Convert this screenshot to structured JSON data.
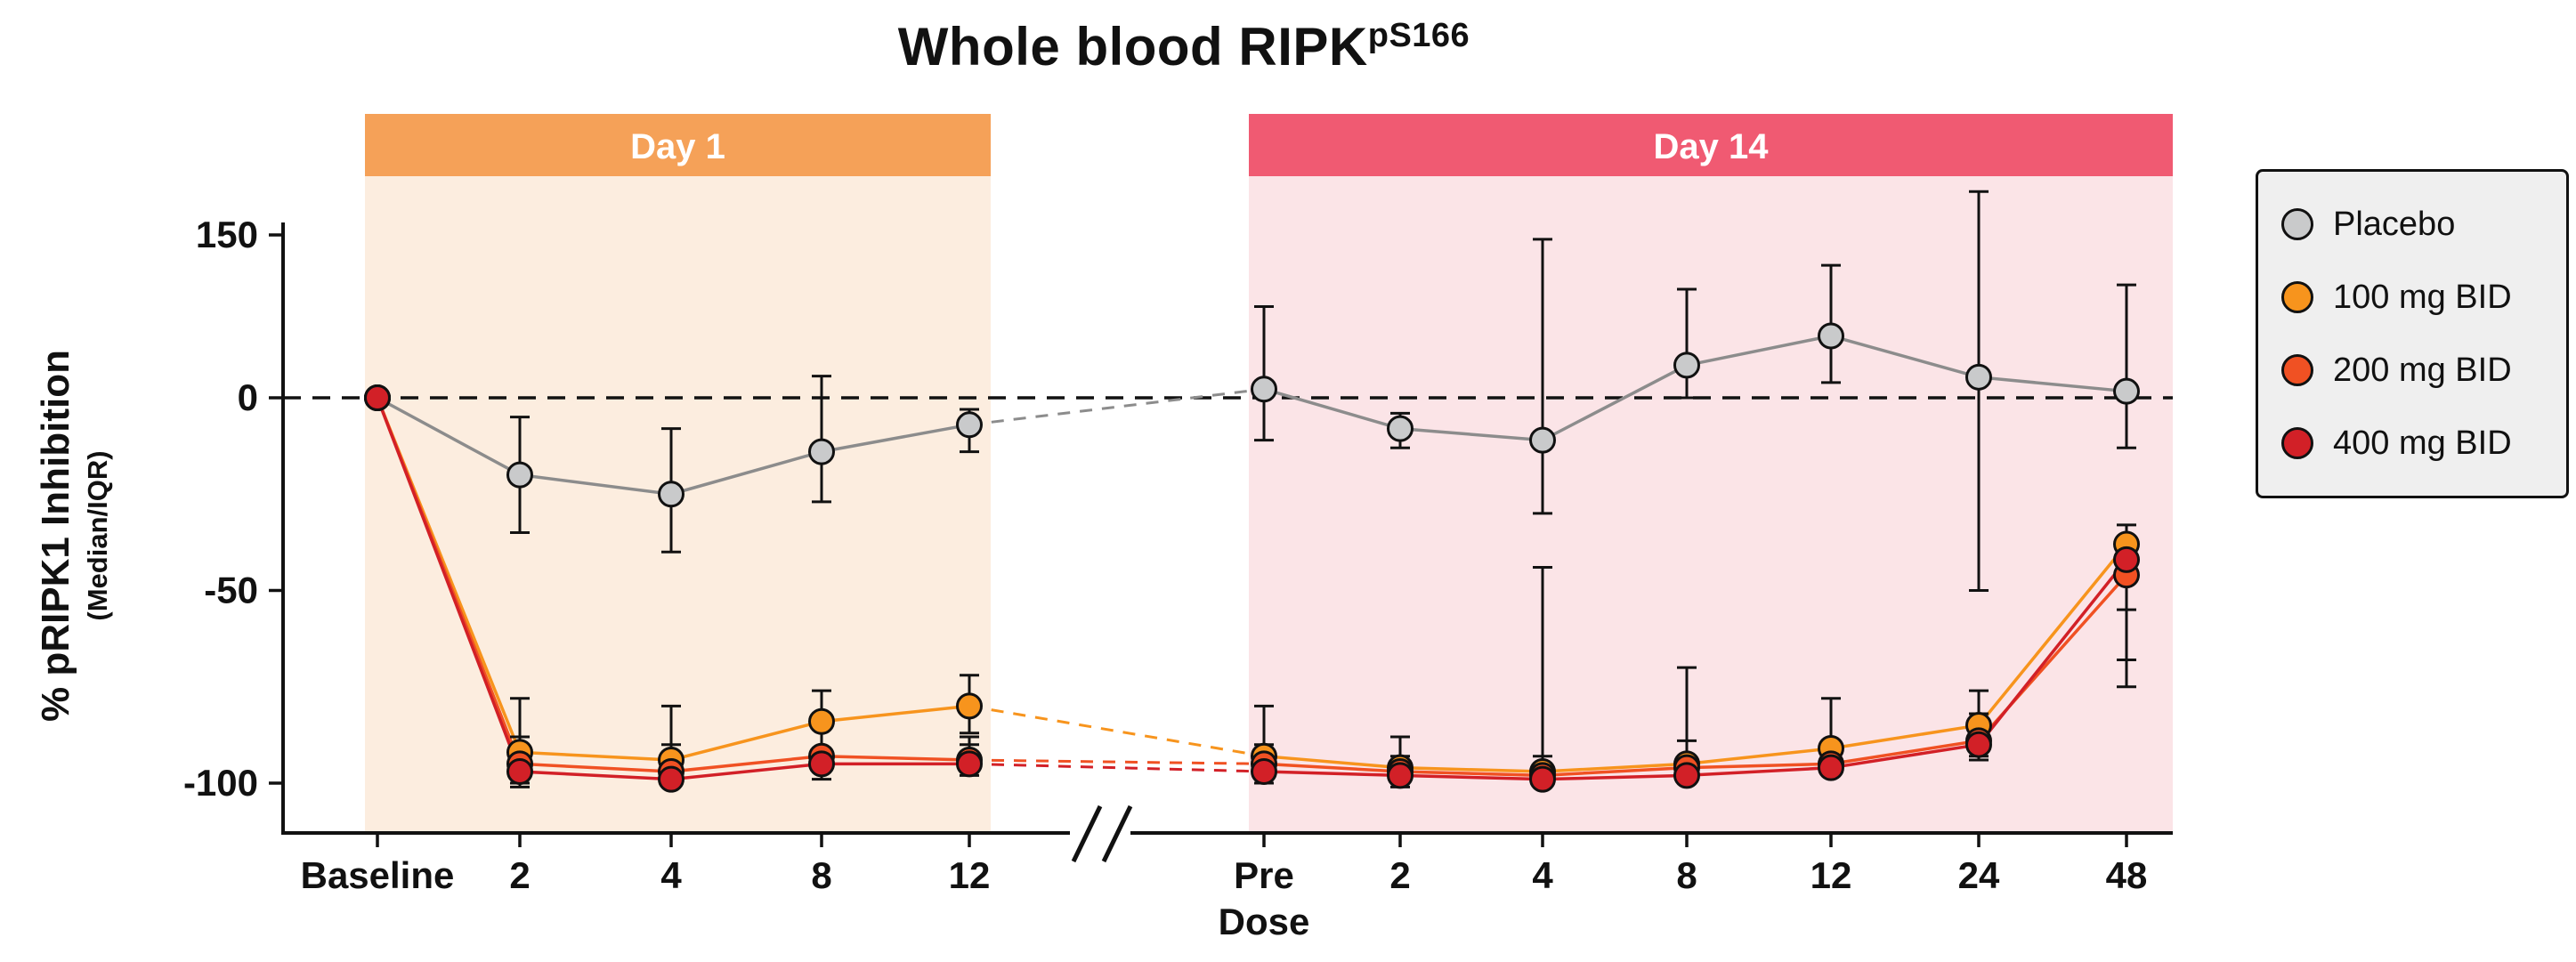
{
  "chart_data": {
    "type": "line",
    "title": "Whole blood RIPK",
    "title_superscript": "pS166",
    "y_axis": {
      "label": "% pRIPK1 Inhibition",
      "sublabel": "(Median/IQR)",
      "ticks": [
        150,
        0,
        -50,
        -100
      ],
      "range": [
        -113,
        204
      ],
      "zero_reference_line": "dashed"
    },
    "x_axis": {
      "break_symbol": "//"
    },
    "legend_position": "outside-right",
    "panels": [
      {
        "label": "Day 1",
        "banner_color": "#F5A158",
        "shade_color": "#FCEDDF",
        "x_ticks": [
          "Baseline",
          "2",
          "4",
          "8",
          "12"
        ]
      },
      {
        "label": "Day 14",
        "banner_color": "#F05A72",
        "shade_color": "#FBE4E7",
        "x_ticks": [
          "Pre",
          "2",
          "4",
          "8",
          "12",
          "24",
          "48"
        ],
        "x_tick_sublabel": {
          "tick": "Pre",
          "text": "Dose"
        }
      }
    ],
    "series": [
      {
        "name": "Placebo",
        "line_color": "#8C8C8C",
        "marker_color": "#C9CACB",
        "day1": {
          "median": [
            0,
            -20,
            -25,
            -14,
            -7
          ],
          "iqr_low": [
            0,
            -35,
            -40,
            -27,
            -14
          ],
          "iqr_high": [
            0,
            -5,
            -8,
            20,
            -3
          ]
        },
        "day14": {
          "median": [
            8,
            -8,
            -11,
            30,
            57,
            19,
            6
          ],
          "iqr_low": [
            -11,
            -13,
            -30,
            0,
            14,
            -50,
            -13
          ],
          "iqr_high": [
            84,
            -4,
            146,
            100,
            122,
            190,
            104
          ]
        }
      },
      {
        "name": "100 mg BID",
        "line_color": "#F7941D",
        "marker_color": "#F7941D",
        "day1": {
          "median": [
            0,
            -92,
            -94,
            -84,
            -80
          ],
          "iqr_low": [
            0,
            -99,
            -99,
            -92,
            -87
          ],
          "iqr_high": [
            0,
            -78,
            -80,
            -76,
            -72
          ]
        },
        "day14": {
          "median": [
            -93,
            -96,
            -97,
            -95,
            -91,
            -85,
            -38
          ],
          "iqr_low": [
            -98,
            -99,
            -99,
            -98,
            -96,
            -91,
            -55
          ],
          "iqr_high": [
            -80,
            -88,
            -44,
            -70,
            -78,
            -76,
            -33
          ]
        }
      },
      {
        "name": "200 mg BID",
        "line_color": "#F05123",
        "marker_color": "#F05123",
        "day1": {
          "median": [
            0,
            -95,
            -97,
            -93,
            -94
          ],
          "iqr_low": [
            0,
            -100,
            -100,
            -97,
            -97
          ],
          "iqr_high": [
            0,
            -88,
            -90,
            -86,
            -88
          ]
        },
        "day14": {
          "median": [
            -95,
            -97,
            -98,
            -96,
            -95,
            -89,
            -46
          ],
          "iqr_low": [
            -99,
            -100,
            -100,
            -99,
            -98,
            -93,
            -68
          ],
          "iqr_high": [
            -90,
            -93,
            -93,
            -89,
            -89,
            -82,
            -40
          ]
        }
      },
      {
        "name": "400 mg BID",
        "line_color": "#D22027",
        "marker_color": "#D22027",
        "day1": {
          "median": [
            0,
            -97,
            -99,
            -95,
            -95
          ],
          "iqr_low": [
            0,
            -101,
            -101,
            -99,
            -98
          ],
          "iqr_high": [
            0,
            -92,
            -95,
            -91,
            -90
          ]
        },
        "day14": {
          "median": [
            -97,
            -98,
            -99,
            -98,
            -96,
            -90,
            -42
          ],
          "iqr_low": [
            -100,
            -101,
            -101,
            -100,
            -98,
            -94,
            -75
          ],
          "iqr_high": [
            -93,
            -95,
            -95,
            -94,
            -92,
            -86,
            -37
          ]
        }
      }
    ]
  }
}
